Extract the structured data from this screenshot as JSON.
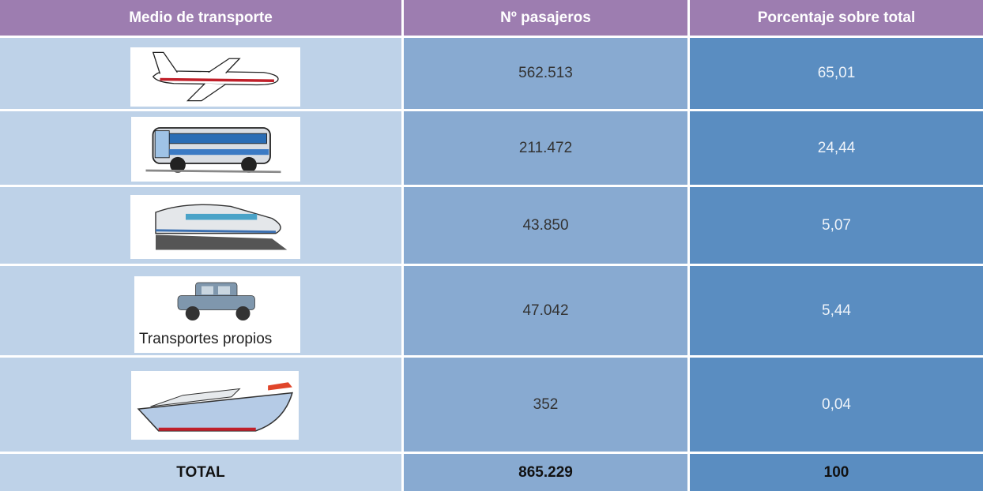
{
  "table": {
    "header": [
      "Medio de transporte",
      "Nº pasajeros",
      "Porcentaje sobre total"
    ],
    "rows": [
      {
        "passengers": "562.513",
        "percent": "65,01"
      },
      {
        "passengers": "211.472",
        "percent": "24,44"
      },
      {
        "passengers": "43.850",
        "percent": "5,07"
      },
      {
        "caption": "Transportes propios",
        "passengers": "47.042",
        "percent": "5,44"
      },
      {
        "passengers": "352",
        "percent": "0,04"
      }
    ],
    "total": {
      "label": "TOTAL",
      "passengers": "865.229",
      "percent": "100"
    }
  }
}
